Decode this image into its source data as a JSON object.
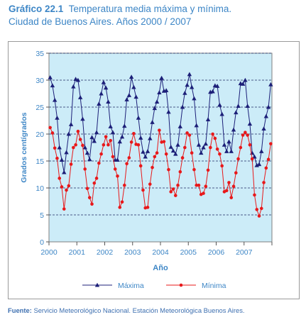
{
  "header": {
    "number": "Gráfico 22.1",
    "title_line1": "Temperatura media máxima y mínima.",
    "title_line2": "Ciudad de Buenos Aires. Años 2000 / 2007"
  },
  "source": {
    "label": "Fuente:",
    "text": "Servicio Meteorológico Nacional. Estación Meteorológica Buenos Aires."
  },
  "colors": {
    "plot_bg": "#ccecf8",
    "max_series": "#1c1f78",
    "min_series": "#e8181a",
    "axis_text": "#3d86c6",
    "grid": "#1f2a63"
  },
  "chart_data": {
    "type": "line",
    "xlabel": "Año",
    "ylabel": "Grados centígrados",
    "ylim": [
      0,
      35
    ],
    "yticks": [
      0,
      5,
      10,
      15,
      20,
      25,
      30,
      35
    ],
    "x_tick_labels": [
      "2000",
      "2001",
      "2002",
      "2003",
      "2004",
      "2005",
      "2006",
      "2007"
    ],
    "x_unit": "month index from January 2000 (12 per year)",
    "grid": "horizontal dashed",
    "legend_position": "bottom",
    "series": [
      {
        "name": "Máxima",
        "marker": "triangle",
        "values": [
          30.5,
          29.0,
          26.3,
          23.0,
          17.5,
          15.2,
          12.9,
          16.6,
          20.0,
          21.8,
          28.8,
          30.2,
          30.0,
          26.8,
          22.8,
          17.5,
          16.5,
          15.3,
          19.4,
          18.7,
          20.3,
          25.6,
          27.5,
          29.6,
          28.6,
          26.0,
          21.4,
          20.3,
          15.2,
          15.2,
          18.6,
          19.5,
          21.5,
          26.4,
          27.2,
          30.6,
          28.7,
          26.9,
          23.0,
          19.3,
          16.7,
          15.8,
          16.8,
          19.2,
          22.2,
          24.8,
          26.0,
          27.7,
          30.4,
          28.0,
          28.1,
          24.1,
          17.6,
          16.9,
          16.3,
          18.0,
          21.4,
          25.0,
          27.6,
          29.1,
          31.1,
          28.7,
          26.6,
          21.6,
          18.0,
          16.5,
          17.5,
          18.2,
          22.7,
          27.8,
          27.9,
          29.0,
          28.9,
          25.4,
          23.7,
          18.0,
          16.8,
          18.6,
          16.8,
          20.8,
          24.0,
          25.2,
          29.4,
          29.3,
          30.0,
          25.2,
          21.9,
          16.5,
          15.8,
          14.2,
          14.4,
          16.8,
          21.0,
          23.3,
          25.0,
          29.2
        ]
      },
      {
        "name": "Mínima",
        "marker": "circle",
        "values": [
          21.2,
          20.2,
          17.4,
          15.5,
          11.8,
          10.2,
          6.1,
          9.6,
          10.4,
          14.4,
          17.5,
          18.0,
          20.5,
          19.0,
          17.9,
          13.5,
          9.9,
          8.2,
          7.0,
          10.9,
          11.8,
          14.6,
          16.3,
          18.0,
          19.5,
          18.0,
          18.8,
          15.8,
          13.5,
          12.2,
          6.4,
          7.4,
          10.5,
          14.5,
          15.6,
          18.5,
          20.1,
          18.1,
          18.0,
          14.1,
          9.6,
          6.3,
          6.4,
          10.7,
          13.8,
          15.8,
          16.5,
          20.7,
          18.5,
          18.6,
          16.3,
          13.4,
          9.3,
          9.8,
          8.6,
          10.5,
          13.0,
          15.6,
          17.5,
          20.2,
          19.8,
          16.5,
          13.4,
          10.5,
          10.5,
          8.8,
          9.0,
          10.3,
          13.3,
          17.5,
          20.0,
          19.2,
          17.2,
          16.3,
          14.1,
          9.3,
          9.5,
          11.0,
          8.2,
          10.3,
          12.8,
          15.4,
          17.5,
          19.8,
          20.3,
          19.8,
          18.0,
          15.4,
          8.7,
          6.0,
          4.8,
          6.2,
          11.0,
          13.7,
          15.3,
          18.2
        ]
      }
    ]
  }
}
